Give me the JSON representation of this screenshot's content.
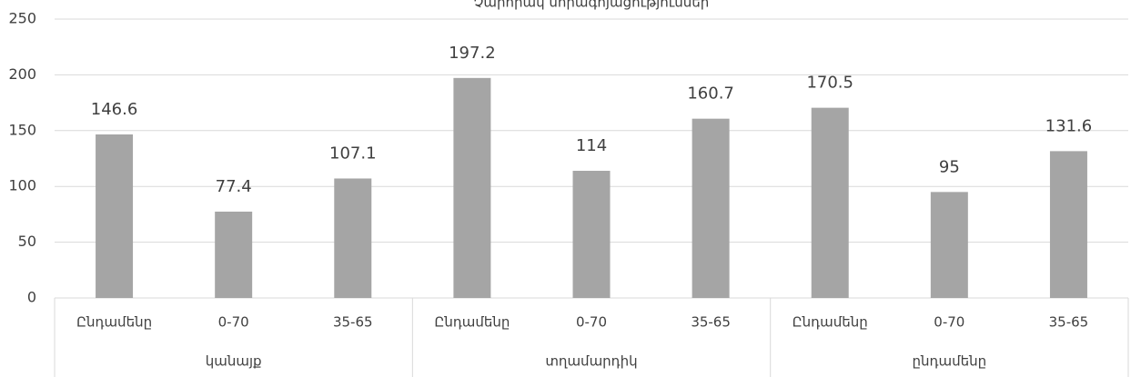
{
  "chart_data": {
    "type": "bar",
    "title": "Չարորակ նորագոյացություններ",
    "categories": [
      "Ընդամենը",
      "0-70",
      "35-65",
      "Ընդամենը",
      "0-70",
      "35-65",
      "Ընդամենը",
      "0-70",
      "35-65"
    ],
    "groups": [
      "կանայք",
      "տղամարդիկ",
      "ընդամենը"
    ],
    "values": [
      146.6,
      77.4,
      107.1,
      197.2,
      114,
      160.7,
      170.5,
      95,
      131.6
    ],
    "color": "#a5a5a5",
    "ylim": [
      0,
      250
    ],
    "yticks": [
      0,
      50,
      100,
      150,
      200,
      250
    ],
    "grid": true
  }
}
